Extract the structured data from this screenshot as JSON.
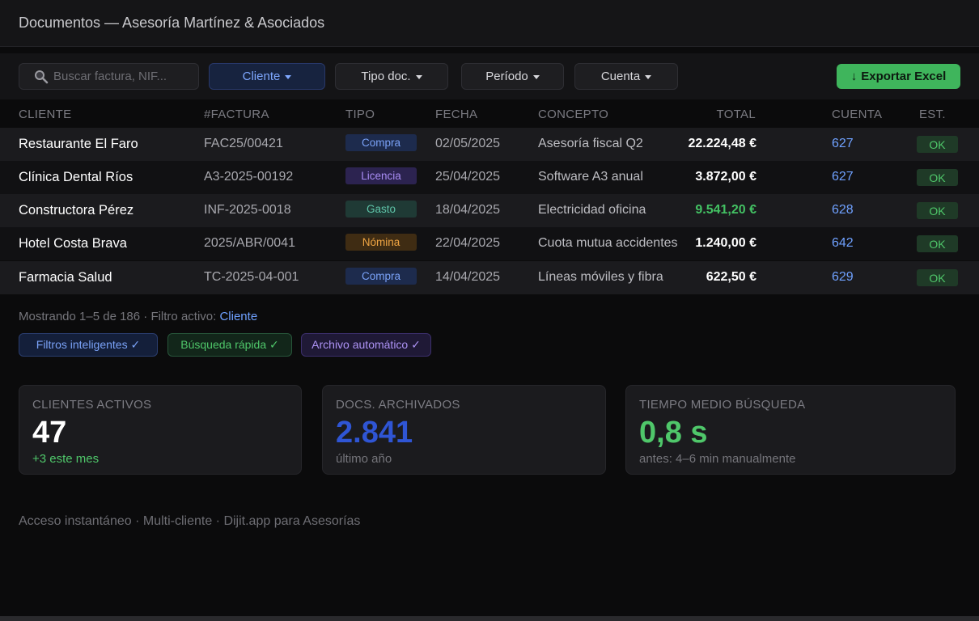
{
  "window": {
    "title": "Documentos — Asesoría Martínez & Asociados"
  },
  "toolbar": {
    "search_placeholder": "Buscar factura, NIF...",
    "filters": [
      {
        "label": "Cliente",
        "active": true
      },
      {
        "label": "Tipo doc.",
        "active": false
      },
      {
        "label": "Período",
        "active": false
      },
      {
        "label": "Cuenta",
        "active": false
      }
    ],
    "export_label": "Exportar Excel",
    "export_icon": "↓"
  },
  "table": {
    "headers": [
      "CLIENTE",
      "#FACTURA",
      "TIPO",
      "FECHA",
      "CONCEPTO",
      "TOTAL",
      "CUENTA",
      "EST."
    ],
    "rows": [
      {
        "client": "Restaurante El Faro",
        "invoice": "FAC25/00421",
        "type": "Compra",
        "date": "02/05/2025",
        "concept": "Asesoría fiscal Q2",
        "total": "22.224,48 €",
        "account": "627",
        "status": "OK"
      },
      {
        "client": "Clínica Dental Ríos",
        "invoice": "A3-2025-00192",
        "type": "Licencia",
        "date": "25/04/2025",
        "concept": "Software A3 anual",
        "total": "3.872,00 €",
        "account": "627",
        "status": "OK"
      },
      {
        "client": "Constructora Pérez",
        "invoice": "INF-2025-0018",
        "type": "Gasto",
        "date": "18/04/2025",
        "concept": "Electricidad oficina",
        "total": "9.541,20 €",
        "account": "628",
        "status": "OK"
      },
      {
        "client": "Hotel Costa Brava",
        "invoice": "2025/ABR/0041",
        "type": "Nómina",
        "date": "22/04/2025",
        "concept": "Cuota mutua accidentes",
        "total": "1.240,00 €",
        "account": "642",
        "status": "OK"
      },
      {
        "client": "Farmacia Salud",
        "invoice": "TC-2025-04-001",
        "type": "Compra",
        "date": "14/04/2025",
        "concept": "Líneas móviles y fibra",
        "total": "622,50 €",
        "account": "629",
        "status": "OK"
      }
    ]
  },
  "status": {
    "showing": "Mostrando 1–5 de 186 · Filtro activo: ",
    "active_filter": "Cliente"
  },
  "badges": [
    "Filtros inteligentes ✓",
    "Búsqueda rápida ✓",
    "Archivo automático ✓"
  ],
  "stats": [
    {
      "label": "CLIENTES ACTIVOS",
      "value": "47",
      "sub": "+3 este mes"
    },
    {
      "label": "DOCS. ARCHIVADOS",
      "value": "2.841",
      "sub": "último año"
    },
    {
      "label": "TIEMPO MEDIO BÚSQUEDA",
      "value": "0,8 s",
      "sub": "antes: 4–6 min manualmente"
    }
  ],
  "footer": "Acceso instantáneo · Multi-cliente · Dijit.app para Asesorías",
  "colors": {
    "accent_blue": "#6fa1ff",
    "accent_green": "#3fb55c",
    "background": "#0b0b0c"
  }
}
